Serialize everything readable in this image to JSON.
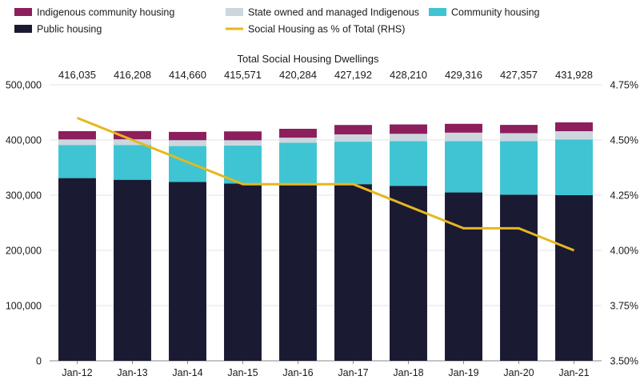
{
  "chart_data": {
    "type": "bar",
    "stacked": true,
    "title": "Total Social Housing Dwellings",
    "categories": [
      "Jan-12",
      "Jan-13",
      "Jan-14",
      "Jan-15",
      "Jan-16",
      "Jan-17",
      "Jan-18",
      "Jan-19",
      "Jan-20",
      "Jan-21"
    ],
    "totals": [
      "416,035",
      "416,208",
      "414,660",
      "415,571",
      "420,284",
      "427,192",
      "428,210",
      "429,316",
      "427,357",
      "431,928"
    ],
    "series": [
      {
        "name": "Public housing",
        "color": "#1a1a33",
        "values": [
          331000,
          328000,
          324000,
          321000,
          318000,
          320000,
          317000,
          305000,
          301000,
          300000
        ]
      },
      {
        "name": "Community housing",
        "color": "#3fc4d4",
        "values": [
          60000,
          63000,
          65000,
          69000,
          77000,
          77000,
          81000,
          93000,
          97000,
          101000
        ]
      },
      {
        "name": "State owned and managed Indigenous",
        "color": "#ccd6de",
        "values": [
          10035,
          10208,
          10660,
          9571,
          9284,
          13192,
          13210,
          15316,
          14357,
          14928
        ]
      },
      {
        "name": "Indigenous community housing",
        "color": "#8c1f5c",
        "values": [
          15000,
          15000,
          15000,
          16000,
          16000,
          17000,
          17000,
          16000,
          15000,
          16000
        ]
      }
    ],
    "line_series": {
      "name": "Social Housing as % of Total (RHS)",
      "color": "#e6b71e",
      "values": [
        4.6,
        4.5,
        4.4,
        4.3,
        4.3,
        4.3,
        4.2,
        4.1,
        4.1,
        4.0
      ]
    },
    "left_axis": {
      "min": 0,
      "max": 500000,
      "ticks": [
        "0",
        "100,000",
        "200,000",
        "300,000",
        "400,000",
        "500,000"
      ]
    },
    "right_axis": {
      "min": 3.5,
      "max": 4.75,
      "ticks": [
        "3.50%",
        "3.75%",
        "4.00%",
        "4.25%",
        "4.50%",
        "4.75%"
      ]
    },
    "legend": [
      {
        "label": "Indigenous community housing",
        "kind": "bar",
        "color": "#8c1f5c"
      },
      {
        "label": "State owned and managed Indigenous",
        "kind": "bar",
        "color": "#ccd6de"
      },
      {
        "label": "Community housing",
        "kind": "bar",
        "color": "#3fc4d4"
      },
      {
        "label": "Public housing",
        "kind": "bar",
        "color": "#1a1a33"
      },
      {
        "label": "Social Housing as % of Total (RHS)",
        "kind": "line",
        "color": "#e6b71e"
      }
    ],
    "legend_position": "top"
  }
}
